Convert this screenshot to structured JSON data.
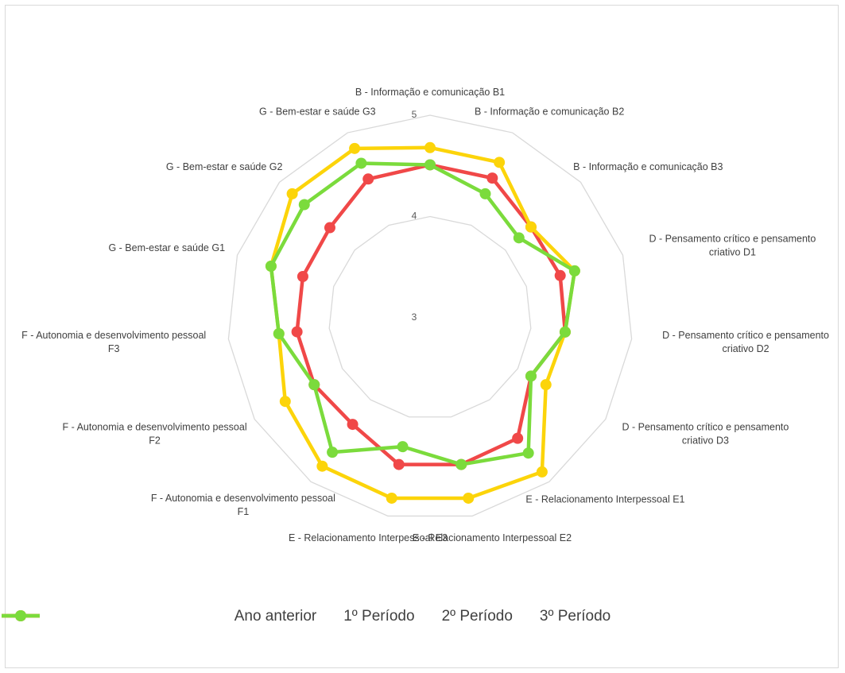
{
  "chart_data": {
    "type": "radar",
    "categories": [
      "B - Informação e comunicação B1",
      "B - Informação e comunicação B2",
      "B - Informação e comunicação B3",
      "D - Pensamento crítico e pensamento criativo D1",
      "D - Pensamento crítico e pensamento criativo D2",
      "D - Pensamento crítico e pensamento criativo D3",
      "E - Relacionamento Interpessoal E1",
      "E - Relacionamento Interpessoal E2",
      "E - Relacionamento Interpessoal E3",
      "F - Autonomia e desenvolvimento pessoal F1",
      "F - Autonomia e desenvolvimento pessoal F2",
      "F - Autonomia e desenvolvimento pessoal F3",
      "G - Bem-estar e saúde G1",
      "G - Bem-estar e saúde G2",
      "G - Bem-estar e saúde G3"
    ],
    "series": [
      {
        "name": "Ano anterior",
        "color": "#4472c4",
        "values": [
          null,
          null,
          null,
          null,
          null,
          null,
          null,
          null,
          null,
          null,
          null,
          null,
          null,
          null,
          null
        ]
      },
      {
        "name": "1º Período",
        "color": "#f04848",
        "values": [
          4.51,
          4.51,
          4.34,
          4.35,
          4.34,
          4.15,
          4.47,
          4.48,
          4.48,
          4.3,
          4.32,
          4.32,
          4.32,
          4.33,
          4.5
        ]
      },
      {
        "name": "2º Período",
        "color": "#fcd40a",
        "values": [
          4.68,
          4.68,
          4.34,
          4.5,
          4.34,
          4.32,
          4.88,
          4.82,
          4.82,
          4.81,
          4.65,
          4.5,
          4.65,
          4.83,
          4.83
        ]
      },
      {
        "name": "3º Período",
        "color": "#7bdb3c",
        "values": [
          4.51,
          4.34,
          4.18,
          4.5,
          4.34,
          4.15,
          4.65,
          4.48,
          4.3,
          4.64,
          4.32,
          4.5,
          4.65,
          4.67,
          4.67
        ]
      }
    ],
    "rlim": [
      3,
      5
    ],
    "rticks": [
      3,
      4,
      5
    ],
    "grid": true,
    "legend": "bottom"
  }
}
